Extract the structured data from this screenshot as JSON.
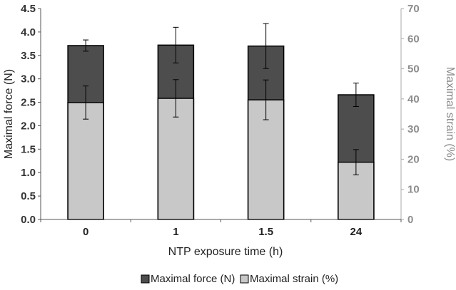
{
  "chart_data": {
    "type": "bar",
    "categories": [
      "0",
      "1",
      "1.5",
      "24"
    ],
    "xlabel": "NTP exposure time (h)",
    "series": [
      {
        "name": "Maximal force (N)",
        "axis": "left",
        "color": "#4d4d4d",
        "values": [
          3.71,
          3.72,
          3.7,
          2.66
        ],
        "error": [
          0.12,
          0.38,
          0.48,
          0.25
        ]
      },
      {
        "name": "Maximal strain (%)",
        "axis": "right",
        "color": "#c8c8c8",
        "values": [
          38.8,
          40.2,
          39.7,
          19.0
        ],
        "error": [
          5.5,
          6.2,
          6.6,
          4.2
        ]
      }
    ],
    "y_left": {
      "label": "Maximal force (N)",
      "ylim": [
        0,
        4.5
      ],
      "ticks": [
        "0.0",
        "0.5",
        "1.0",
        "1.5",
        "2.0",
        "2.5",
        "3.0",
        "3.5",
        "4.0",
        "4.5"
      ],
      "color": "#333333"
    },
    "y_right": {
      "label": "Maximal strain (%)",
      "ylim": [
        0,
        70
      ],
      "ticks": [
        "0",
        "10",
        "20",
        "30",
        "40",
        "50",
        "60",
        "70"
      ],
      "color": "#8c8c8c"
    },
    "legend": {
      "position": "bottom",
      "entries": [
        "Maximal force (N)",
        "Maximal strain (%)"
      ]
    },
    "grid": false
  }
}
